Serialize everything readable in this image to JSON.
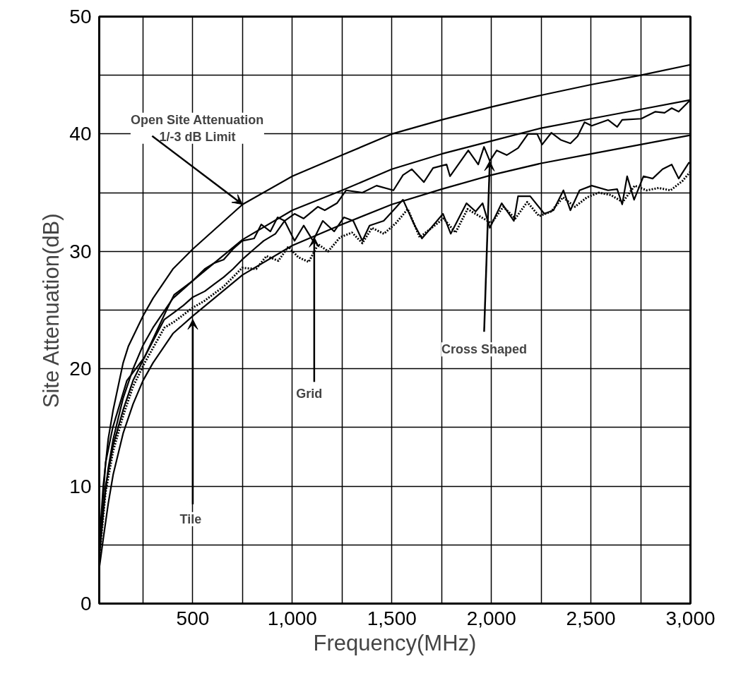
{
  "chart_data": {
    "type": "line",
    "xlabel": "Frequency(MHz)",
    "ylabel": "Site Attenuation(dB)",
    "xlim": [
      30,
      3000
    ],
    "ylim": [
      0,
      50
    ],
    "xticks": [
      {
        "value": 250,
        "label": null
      },
      {
        "value": 500,
        "label": "500"
      },
      {
        "value": 750,
        "label": null
      },
      {
        "value": 1000,
        "label": "1,000"
      },
      {
        "value": 1250,
        "label": null
      },
      {
        "value": 1500,
        "label": "1,500"
      },
      {
        "value": 1750,
        "label": null
      },
      {
        "value": 2000,
        "label": "2,000"
      },
      {
        "value": 2250,
        "label": null
      },
      {
        "value": 2500,
        "label": "2,500"
      },
      {
        "value": 2750,
        "label": null
      },
      {
        "value": 3000,
        "label": "3,000"
      }
    ],
    "yticks": [
      0,
      {
        "value": 5,
        "label": null
      },
      10,
      {
        "value": 15,
        "label": null
      },
      20,
      {
        "value": 25,
        "label": null
      },
      30,
      {
        "value": 35,
        "label": null
      },
      40,
      {
        "value": 45,
        "label": null
      },
      50
    ],
    "grid": true,
    "marker": "none",
    "line_style": "solid",
    "series": [
      {
        "color": "#000000",
        "x": [
          30,
          50,
          75,
          100,
          150,
          176,
          250,
          300,
          400,
          500,
          750,
          1000,
          1250,
          1500,
          1750,
          2000,
          2250,
          2500,
          2750,
          3000
        ],
        "values": [
          5,
          10,
          14,
          16.5,
          20.5,
          21.9,
          24.5,
          26,
          28.5,
          30.2,
          34,
          36.4,
          38.2,
          40,
          41.2,
          42.3,
          43.3,
          44.2,
          45,
          45.9
        ]
      },
      {
        "color": "#000000",
        "x": [
          30,
          50,
          75,
          100,
          150,
          200,
          250,
          300,
          400,
          500,
          750,
          1000,
          1250,
          1500,
          1750,
          2000,
          2250,
          2500,
          2750,
          3000
        ],
        "values": [
          4,
          8,
          11.5,
          14,
          17.5,
          20,
          22,
          23.5,
          26,
          27.5,
          31,
          33.5,
          35.2,
          37,
          38.3,
          39.4,
          40.5,
          41.3,
          42.1,
          42.9
        ]
      },
      {
        "color": "#000000",
        "x": [
          30,
          50,
          75,
          100,
          150,
          200,
          250,
          300,
          400,
          500,
          750,
          1000,
          1250,
          1500,
          1750,
          2000,
          2250,
          2500,
          2750,
          3000
        ],
        "values": [
          3,
          5.5,
          8.5,
          11,
          14.5,
          17,
          19,
          20.5,
          23,
          24.5,
          28,
          30.5,
          32.3,
          34,
          35.3,
          36.5,
          37.5,
          38.3,
          39.1,
          39.9
        ]
      },
      {
        "color": "#000000",
        "x": [
          30,
          62,
          98,
          169,
          258,
          371,
          406,
          453,
          500,
          560,
          607,
          655,
          702,
          748,
          808,
          844,
          890,
          926,
          961,
          1011,
          1057,
          1128,
          1163,
          1224,
          1270,
          1352,
          1423,
          1508,
          1556,
          1600,
          1661,
          1707,
          1775,
          1792,
          1884,
          1934,
          1963,
          1992,
          2027,
          2077,
          2134,
          2184,
          2230,
          2255,
          2301,
          2348,
          2397,
          2433,
          2468,
          2504,
          2586,
          2632,
          2657,
          2753,
          2824,
          2870,
          2906,
          2941,
          2994
        ],
        "values": [
          4.5,
          12,
          15,
          19,
          21,
          25.1,
          26.3,
          26.9,
          27.5,
          28.5,
          29,
          29.3,
          30.2,
          30.9,
          31.1,
          32.3,
          31.7,
          32.9,
          32.6,
          33.2,
          32.8,
          33.8,
          33.5,
          34.1,
          35.2,
          35,
          35.6,
          35.2,
          36.5,
          37,
          35.9,
          37.1,
          37.4,
          36.4,
          38.6,
          37.4,
          38.9,
          37.7,
          38.6,
          38.2,
          38.8,
          40,
          40,
          39.1,
          40.1,
          39.5,
          39.2,
          39.8,
          41,
          40.7,
          41.2,
          40.6,
          41.2,
          41.3,
          41.9,
          41.8,
          42.2,
          41.9,
          42.8
        ]
      },
      {
        "color": "#000000",
        "x": [
          30,
          62,
          100,
          150,
          200,
          258,
          357,
          406,
          453,
          500,
          560,
          607,
          655,
          702,
          748,
          808,
          856,
          915,
          961,
          1011,
          1057,
          1104,
          1153,
          1210,
          1259,
          1306,
          1352,
          1388,
          1459,
          1508,
          1556,
          1615,
          1651,
          1697,
          1757,
          1796,
          1875,
          1921,
          1956,
          1992,
          2052,
          2113,
          2134,
          2195,
          2266,
          2312,
          2362,
          2397,
          2443,
          2504,
          2586,
          2632,
          2657,
          2682,
          2717,
          2764,
          2810,
          2860,
          2906,
          2941,
          2994
        ],
        "values": [
          4,
          10,
          13.5,
          16.5,
          19,
          21,
          24.2,
          24.8,
          25.4,
          26.1,
          26.6,
          27.2,
          27.8,
          28.5,
          29.3,
          30.2,
          30.9,
          31.5,
          32.6,
          30.9,
          32.2,
          30.9,
          32.6,
          31.7,
          32.9,
          32.6,
          30.9,
          32.2,
          32.6,
          33.5,
          34.4,
          32.2,
          31.1,
          32,
          33.2,
          31.5,
          34.1,
          33.4,
          34.1,
          32,
          34.1,
          32.6,
          34.7,
          34.7,
          33.2,
          33.5,
          35.2,
          33.5,
          35.2,
          35.6,
          35.2,
          35.3,
          34,
          36.4,
          34.4,
          36.4,
          36.2,
          37,
          37.4,
          36.2,
          37.6
        ]
      },
      {
        "color": "#000000",
        "line_style": "dotted",
        "x": [
          30,
          62,
          100,
          150,
          200,
          258,
          357,
          406,
          453,
          500,
          560,
          607,
          655,
          702,
          748,
          818,
          870,
          930,
          980,
          1030,
          1082,
          1130,
          1180,
          1240,
          1300,
          1352,
          1400,
          1460,
          1520,
          1580,
          1640,
          1700,
          1760,
          1820,
          1880,
          1940,
          2000,
          2060,
          2120,
          2180,
          2240,
          2300,
          2360,
          2420,
          2480,
          2540,
          2600,
          2660,
          2720,
          2780,
          2840,
          2900,
          2960,
          3000
        ],
        "values": [
          3.8,
          9.5,
          13,
          16,
          18.5,
          20.5,
          23.5,
          24,
          24.6,
          25.2,
          25.8,
          26.4,
          27,
          27.8,
          28.6,
          28.5,
          29.6,
          29.2,
          30.4,
          29.5,
          29.1,
          30.6,
          30,
          31.2,
          31.6,
          30.7,
          32,
          31.5,
          32.4,
          33.6,
          31.2,
          32,
          32.8,
          31.6,
          33.6,
          33,
          32.4,
          33.8,
          32.8,
          34.2,
          33,
          33.4,
          34.6,
          33.8,
          34.6,
          35,
          34.8,
          34.2,
          35.6,
          35.2,
          35.4,
          35.2,
          36,
          36.8
        ]
      }
    ],
    "annotations": [
      {
        "text": "Open Site Attenuation\n1/-3 dB Limit",
        "x": 750,
        "y": 34
      },
      {
        "text": "Tile",
        "x": 500,
        "y": 24.2
      },
      {
        "text": "Grid",
        "x": 1110,
        "y": 31.2
      },
      {
        "text": "Cross Shaped",
        "x": 1992,
        "y": 37.7
      }
    ]
  }
}
